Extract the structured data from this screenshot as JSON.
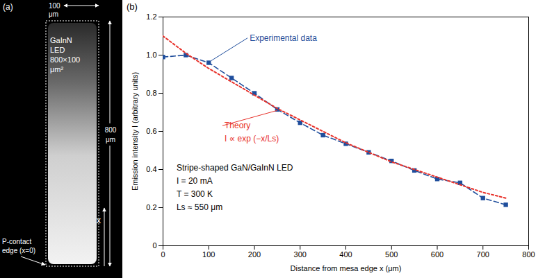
{
  "panel_a": {
    "label": "(a)",
    "width_label": [
      "100",
      "μm"
    ],
    "device_label": [
      "GaInN",
      "LED",
      "800×100",
      "μm²"
    ],
    "length_label": [
      "800",
      "μm"
    ],
    "axis_label": "x",
    "contact_label": [
      "P-contact",
      "edge (x=0)"
    ]
  },
  "chart_data": {
    "type": "line",
    "panel_label": "(b)",
    "x_label": "Distance from mesa edge x (μm)",
    "y_label": "Emission intensity I (arbitrary units)",
    "xlim": [
      0,
      800
    ],
    "xticks": [
      0,
      100,
      200,
      300,
      400,
      500,
      600,
      700,
      800
    ],
    "ylim": [
      0,
      1.2
    ],
    "yticks": [
      0,
      0.2,
      0.4,
      0.6,
      0.8,
      {
        "value": 1,
        "label": "1.0"
      },
      1.2
    ],
    "grid": false,
    "series": [
      {
        "name": "Experimental data",
        "color": "#1f4e9c",
        "marker": "square",
        "line_style": "dashed",
        "x": [
          0,
          50,
          100,
          150,
          200,
          250,
          300,
          350,
          400,
          450,
          500,
          550,
          600,
          650,
          700,
          750
        ],
        "values": [
          0.99,
          1.0,
          0.96,
          0.88,
          0.8,
          0.715,
          0.645,
          0.58,
          0.535,
          0.49,
          0.445,
          0.395,
          0.35,
          0.33,
          0.25,
          0.215
        ]
      },
      {
        "name": "Theory",
        "color": "#e8312a",
        "line_style": "dotted",
        "x": [
          0,
          50,
          100,
          150,
          200,
          250,
          300,
          350,
          400,
          450,
          500,
          550,
          600,
          650,
          700,
          750
        ],
        "values": [
          1.1,
          1.01,
          0.93,
          0.86,
          0.79,
          0.72,
          0.66,
          0.6,
          0.54,
          0.49,
          0.44,
          0.4,
          0.36,
          0.32,
          0.28,
          0.25
        ]
      }
    ],
    "annotations": [
      {
        "text": "Experimental data",
        "x": 185,
        "y": 1.09,
        "color": "#1f4e9c",
        "arrow_to": [
          105,
          0.97
        ]
      },
      {
        "text": "Theory",
        "x": 130,
        "y": 0.63,
        "color": "#e8312a",
        "arrow_to": [
          250,
          0.71
        ]
      },
      {
        "text": "I ∝ exp (−x/Ls)",
        "x": 130,
        "y": 0.56,
        "color": "#e8312a"
      },
      {
        "text": "Stripe-shaped GaN/GaInN LED",
        "x": 25,
        "y": 0.41,
        "color": "#000000"
      },
      {
        "text": "I = 20 mA",
        "x": 25,
        "y": 0.34,
        "color": "#000000"
      },
      {
        "text": "T = 300 K",
        "x": 25,
        "y": 0.27,
        "color": "#000000"
      },
      {
        "text": "Ls ≈ 550 μm",
        "x": 25,
        "y": 0.2,
        "color": "#000000"
      }
    ]
  }
}
